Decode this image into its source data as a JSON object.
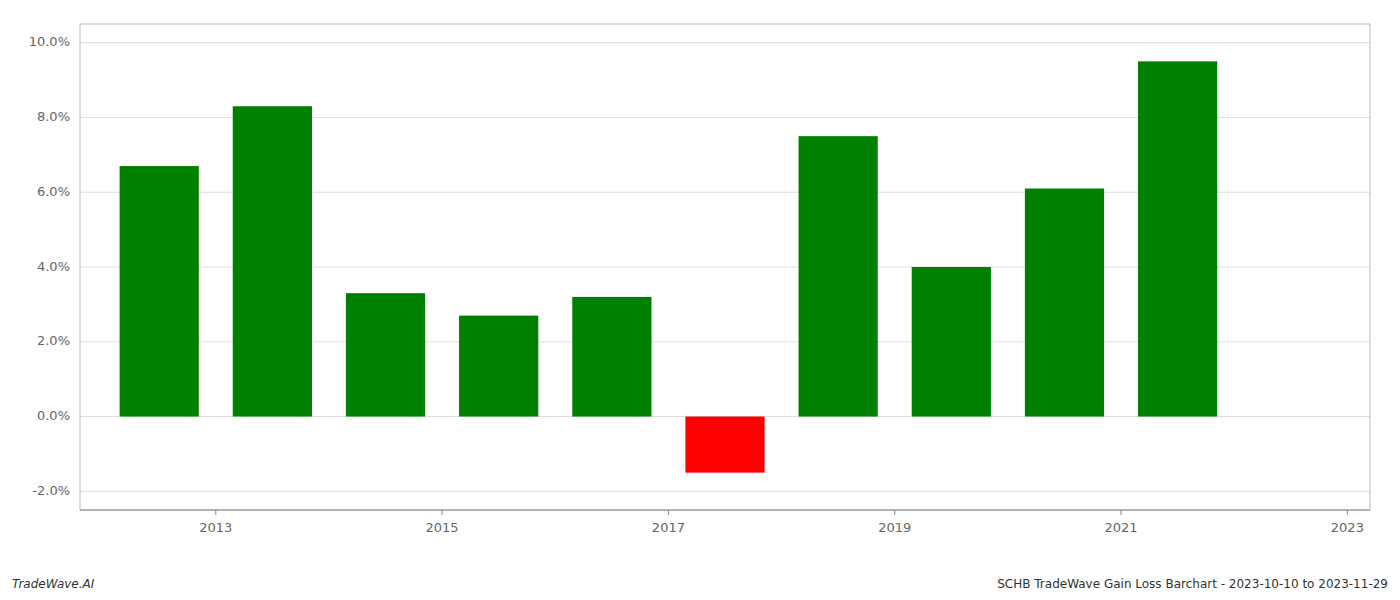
{
  "chart_data": {
    "type": "bar",
    "x": [
      2012.5,
      2013.5,
      2014.5,
      2015.5,
      2016.5,
      2017.5,
      2018.5,
      2019.5,
      2020.5,
      2021.5
    ],
    "values": [
      0.067,
      0.083,
      0.033,
      0.027,
      0.032,
      -0.015,
      0.075,
      0.04,
      0.061,
      0.095
    ],
    "colors": [
      "#008000",
      "#008000",
      "#008000",
      "#008000",
      "#008000",
      "#ff0000",
      "#008000",
      "#008000",
      "#008000",
      "#008000"
    ],
    "xlim": [
      2011.8,
      2023.2
    ],
    "xticks": [
      2013,
      2015,
      2017,
      2019,
      2021,
      2023
    ],
    "ylim": [
      -0.025,
      0.105
    ],
    "yticks": [
      {
        "value": -0.02,
        "label": "-2.0%"
      },
      {
        "value": 0.0,
        "label": "0.0%"
      },
      {
        "value": 0.02,
        "label": "2.0%"
      },
      {
        "value": 0.04,
        "label": "4.0%"
      },
      {
        "value": 0.06,
        "label": "6.0%"
      },
      {
        "value": 0.08,
        "label": "8.0%"
      },
      {
        "value": 0.1,
        "label": "10.0%"
      }
    ],
    "grid": true,
    "annotations": [
      "TradeWave.AI",
      "SCHB TradeWave Gain Loss Barchart - 2023-10-10 to 2023-11-29"
    ]
  }
}
